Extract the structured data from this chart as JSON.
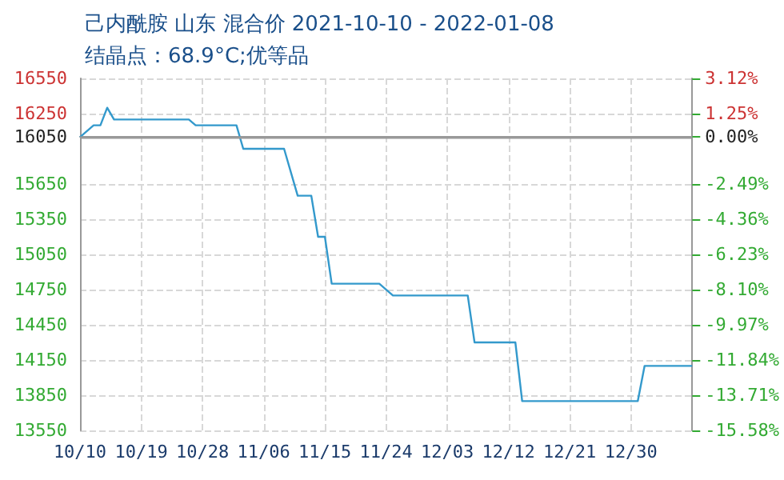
{
  "chart_data": {
    "type": "line",
    "title": "己内酰胺 山东 混合价 2021-10-10 - 2022-01-08",
    "subtitle": "结晶点：68.9°C;优等品",
    "x": [
      "2021-10-10",
      "2021-10-12",
      "2021-10-13",
      "2021-10-14",
      "2021-10-15",
      "2021-10-26",
      "2021-10-27",
      "2021-11-02",
      "2021-11-03",
      "2021-11-09",
      "2021-11-11",
      "2021-11-13",
      "2021-11-14",
      "2021-11-15",
      "2021-11-16",
      "2021-11-23",
      "2021-11-25",
      "2021-12-06",
      "2021-12-07",
      "2021-12-13",
      "2021-12-14",
      "2021-12-31",
      "2022-01-01",
      "2022-01-08"
    ],
    "series": [
      {
        "color": "#3399cc",
        "values": [
          16050,
          16150,
          16150,
          16300,
          16200,
          16200,
          16150,
          16150,
          15950,
          15950,
          15550,
          15550,
          15200,
          15200,
          14800,
          14800,
          14700,
          14700,
          14300,
          14300,
          13800,
          13800,
          14100,
          14100
        ]
      }
    ],
    "xlim": [
      "2021-10-10",
      "2022-01-08"
    ],
    "xticks": [
      {
        "value": "2021-10-10",
        "label": "10/10"
      },
      {
        "value": "2021-10-19",
        "label": "10/19"
      },
      {
        "value": "2021-10-28",
        "label": "10/28"
      },
      {
        "value": "2021-11-06",
        "label": "11/06"
      },
      {
        "value": "2021-11-15",
        "label": "11/15"
      },
      {
        "value": "2021-11-24",
        "label": "11/24"
      },
      {
        "value": "2021-12-03",
        "label": "12/03"
      },
      {
        "value": "2021-12-12",
        "label": "12/12"
      },
      {
        "value": "2021-12-21",
        "label": "12/21"
      },
      {
        "value": "2021-12-30",
        "label": "12/30"
      }
    ],
    "ylim": [
      13550,
      16550
    ],
    "yticks": [
      16550,
      16250,
      16050,
      15650,
      15350,
      15050,
      14750,
      14450,
      14150,
      13850,
      13550
    ],
    "y2lim": [
      -15.58,
      3.12
    ],
    "y2ticks": [
      {
        "value": 3.12,
        "label": "3.12%"
      },
      {
        "value": 1.25,
        "label": "1.25%"
      },
      {
        "value": 0,
        "label": "0.00%"
      },
      {
        "value": -2.49,
        "label": "-2.49%"
      },
      {
        "value": -4.36,
        "label": "-4.36%"
      },
      {
        "value": -6.23,
        "label": "-6.23%"
      },
      {
        "value": -8.1,
        "label": "-8.10%"
      },
      {
        "value": -9.97,
        "label": "-9.97%"
      },
      {
        "value": -11.84,
        "label": "-11.84%"
      },
      {
        "value": -13.71,
        "label": "-13.71%"
      },
      {
        "value": -15.58,
        "label": "-15.58%"
      }
    ],
    "ref_lines": [
      {
        "axis": "y",
        "value": 16050,
        "color": "#999999",
        "line_style": "solid"
      }
    ],
    "grid": true,
    "marker": "none",
    "line_style": "solid"
  }
}
